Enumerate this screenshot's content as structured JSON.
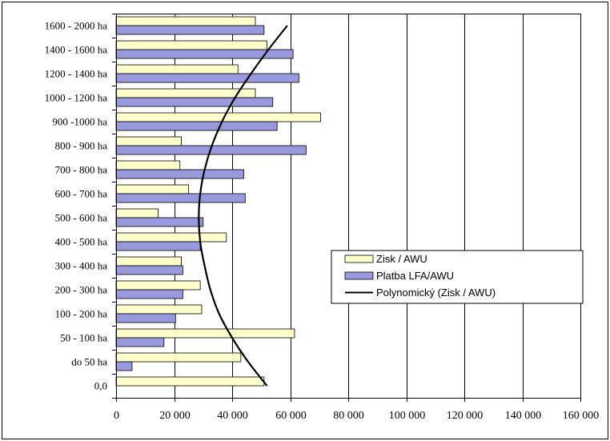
{
  "chart_data": {
    "type": "bar",
    "orientation": "horizontal",
    "title": "",
    "xlabel": "",
    "ylabel": "",
    "xlim": [
      0,
      160000
    ],
    "x_ticks": [
      0,
      20000,
      40000,
      60000,
      80000,
      100000,
      120000,
      140000,
      160000
    ],
    "x_tick_labels": [
      "0",
      "20 000",
      "40 000",
      "60 000",
      "80 000",
      "100 000",
      "120 000",
      "140 000",
      "160 000"
    ],
    "grid": true,
    "legend_position": "right",
    "categories": [
      "1600 - 2000 ha",
      "1400 - 1600 ha",
      "1200 - 1400 ha",
      "1000 - 1200 ha",
      "900 -1000 ha",
      "800 - 900 ha",
      "700 - 800 ha",
      "600 - 700 ha",
      "500 - 600 ha",
      "400 - 500 ha",
      "300 - 400 ha",
      "200 - 300 ha",
      "100 - 200 ha",
      "50 - 100 ha",
      "do 50 ha",
      "0,0"
    ],
    "series": [
      {
        "name": "Zisk / AWU",
        "color": "#ffffcc",
        "values": [
          48000,
          52000,
          42000,
          48000,
          70500,
          22500,
          22000,
          25000,
          14500,
          38000,
          22500,
          29000,
          29500,
          61500,
          43000,
          51000
        ]
      },
      {
        "name": "Platba LFA/AWU",
        "color": "#9999dd",
        "values": [
          51000,
          61000,
          63000,
          54000,
          55500,
          65500,
          44000,
          44500,
          30000,
          29000,
          23000,
          23000,
          20500,
          16500,
          5500,
          0
        ]
      }
    ],
    "trendline": {
      "name": "Polynomický (Zisk / AWU)",
      "of_series": "Zisk / AWU",
      "color": "#000000",
      "points": [
        [
          "1600 - 2000 ha",
          59000
        ],
        [
          "1400 - 1600 ha",
          52500
        ],
        [
          "1200 - 1400 ha",
          46500
        ],
        [
          "1000 - 1200 ha",
          41000
        ],
        [
          "900 -1000 ha",
          36500
        ],
        [
          "800 - 900 ha",
          33000
        ],
        [
          "700 - 800 ha",
          30500
        ],
        [
          "600 - 700 ha",
          29000
        ],
        [
          "500 - 600 ha",
          28500
        ],
        [
          "400 - 500 ha",
          29000
        ],
        [
          "300 - 400 ha",
          30500
        ],
        [
          "200 - 300 ha",
          32500
        ],
        [
          "100 - 200 ha",
          35500
        ],
        [
          "50 - 100 ha",
          40000
        ],
        [
          "do 50 ha",
          45500
        ],
        [
          "0,0",
          52000
        ]
      ]
    }
  }
}
